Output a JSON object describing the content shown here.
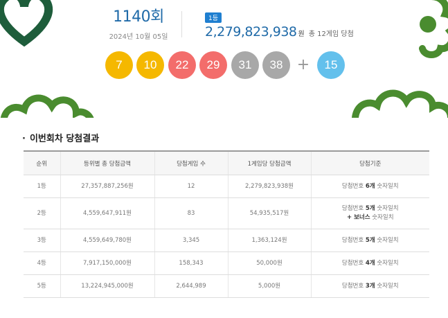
{
  "draw": {
    "round": "1140회",
    "date": "2024년 10월 05일",
    "first_prize_badge": "1등",
    "first_prize_amount": "2,279,823,938",
    "first_prize_unit": "원",
    "first_prize_winners": "총 12게임 당첨",
    "numbers": [
      {
        "value": "7",
        "color": "#f5b800"
      },
      {
        "value": "10",
        "color": "#f5b800"
      },
      {
        "value": "22",
        "color": "#f36d6b"
      },
      {
        "value": "29",
        "color": "#f36d6b"
      },
      {
        "value": "31",
        "color": "#a8a8a8"
      },
      {
        "value": "38",
        "color": "#a8a8a8"
      }
    ],
    "plus_sign": "+",
    "bonus": {
      "value": "15",
      "color": "#63c0ec"
    }
  },
  "colors": {
    "accent_blue": "#1f6aa8",
    "deco_green": "#4a8c2f",
    "deco_dark_green": "#1e5d3b"
  },
  "results": {
    "section_title": "이번회차 당첨결과",
    "columns": [
      "순위",
      "등위별 총 당첨금액",
      "당첨게임 수",
      "1게임당 당첨금액",
      "당첨기준"
    ],
    "rows": [
      {
        "rank": "1등",
        "total": "27,357,887,256원",
        "games": "12",
        "per_game": "2,279,823,938원",
        "crit_pre": "당첨번호 ",
        "crit_bold": "6개",
        "crit_post": " 숫자일치",
        "crit_extra_bold": "",
        "crit_extra": ""
      },
      {
        "rank": "2등",
        "total": "4,559,647,911원",
        "games": "83",
        "per_game": "54,935,517원",
        "crit_pre": "당첨번호 ",
        "crit_bold": "5개",
        "crit_post": " 숫자일치",
        "crit_extra_bold": "+ 보너스",
        "crit_extra": " 숫자일치"
      },
      {
        "rank": "3등",
        "total": "4,559,649,780원",
        "games": "3,345",
        "per_game": "1,363,124원",
        "crit_pre": "당첨번호 ",
        "crit_bold": "5개",
        "crit_post": " 숫자일치",
        "crit_extra_bold": "",
        "crit_extra": ""
      },
      {
        "rank": "4등",
        "total": "7,917,150,000원",
        "games": "158,343",
        "per_game": "50,000원",
        "crit_pre": "당첨번호 ",
        "crit_bold": "4개",
        "crit_post": " 숫자일치",
        "crit_extra_bold": "",
        "crit_extra": ""
      },
      {
        "rank": "5등",
        "total": "13,224,945,000원",
        "games": "2,644,989",
        "per_game": "5,000원",
        "crit_pre": "당첨번호 ",
        "crit_bold": "3개",
        "crit_post": " 숫자일치",
        "crit_extra_bold": "",
        "crit_extra": ""
      }
    ]
  }
}
